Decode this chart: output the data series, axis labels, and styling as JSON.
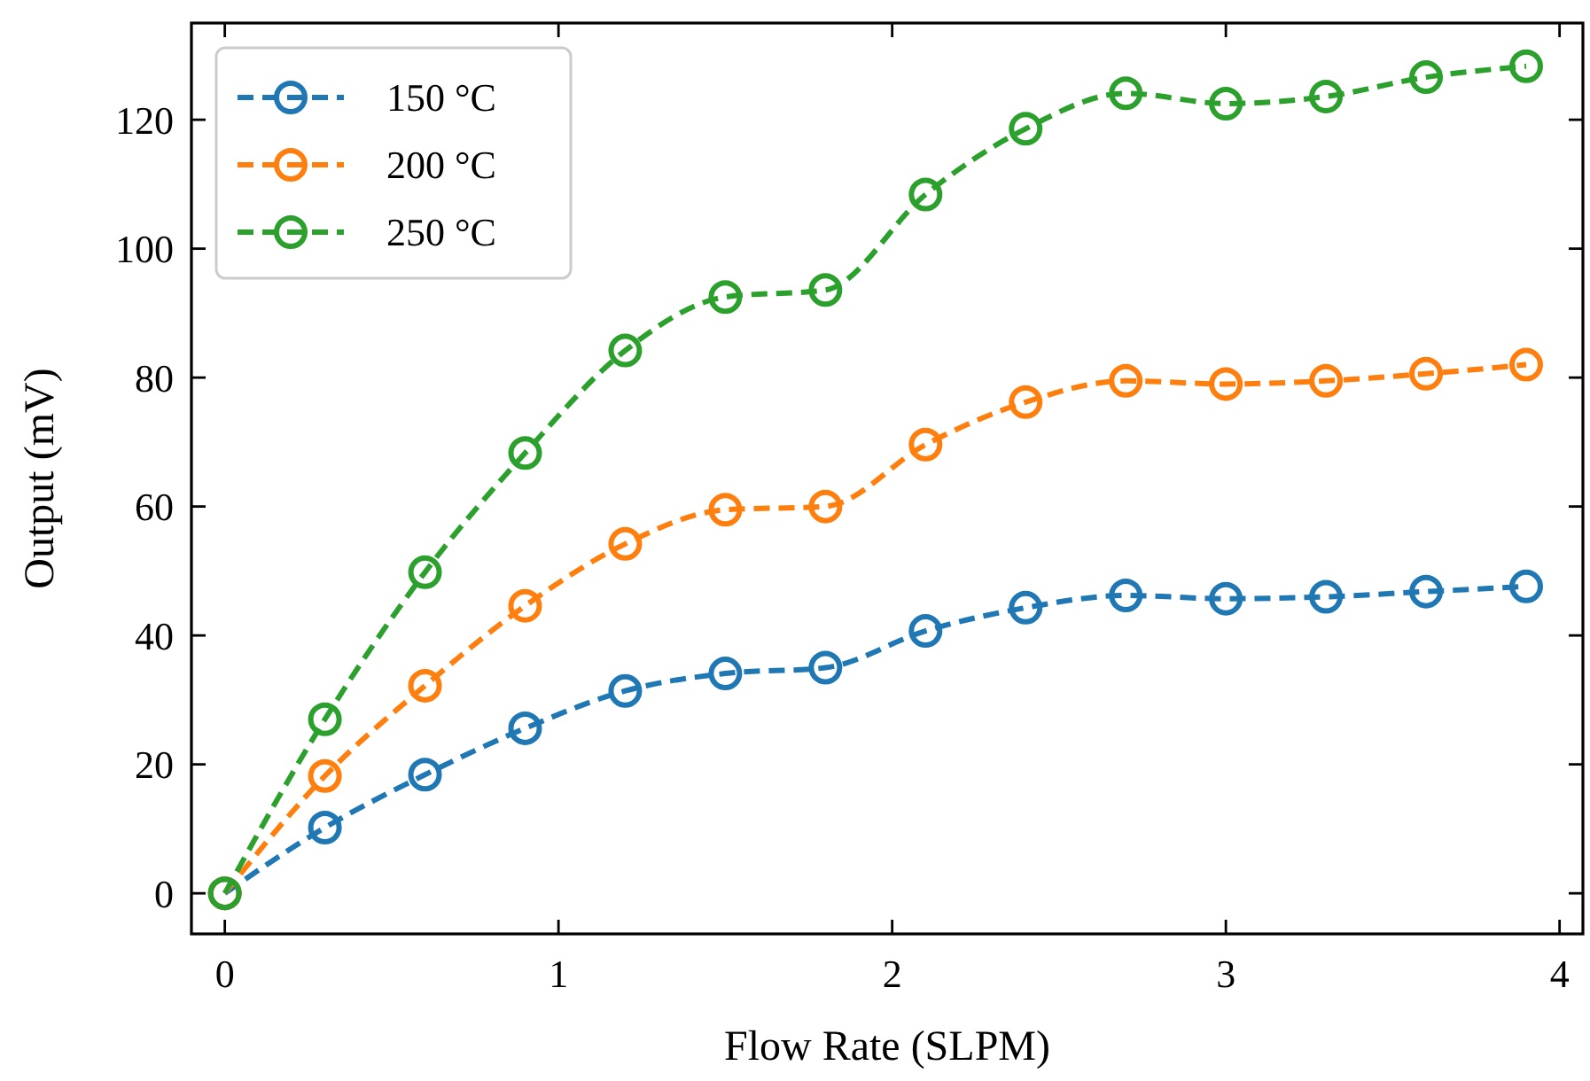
{
  "chart_data": {
    "type": "line",
    "xlabel": "Flow Rate (SLPM)",
    "ylabel": "Output (mV)",
    "x": [
      0,
      0.3,
      0.6,
      0.9,
      1.2,
      1.5,
      1.8,
      2.1,
      2.4,
      2.7,
      3.0,
      3.3,
      3.6,
      3.9
    ],
    "series": [
      {
        "name": "150 °C",
        "color": "#1f77b4",
        "values": [
          0,
          10.2,
          18.4,
          25.6,
          31.4,
          34.1,
          35.0,
          40.7,
          44.3,
          46.2,
          45.7,
          46.0,
          46.8,
          47.6
        ]
      },
      {
        "name": "200 °C",
        "color": "#ff7f0e",
        "values": [
          0,
          18.2,
          32.2,
          44.6,
          54.2,
          59.5,
          60.0,
          69.6,
          76.2,
          79.5,
          79.0,
          79.5,
          80.6,
          82.0
        ]
      },
      {
        "name": "250 °C",
        "color": "#2ca02c",
        "values": [
          0,
          27.0,
          49.8,
          68.3,
          84.2,
          92.5,
          93.6,
          108.4,
          118.6,
          124.1,
          122.5,
          123.6,
          126.6,
          128.3
        ]
      }
    ],
    "xlim": [
      -0.1,
      4.07
    ],
    "xticks": [
      0,
      1,
      2,
      3,
      4
    ],
    "ylim": [
      -6.3,
      135
    ],
    "yticks": [
      0,
      20,
      40,
      60,
      80,
      100,
      120
    ],
    "grid": false,
    "legend": "top left",
    "marker": "circle",
    "line_style": "dashed"
  }
}
